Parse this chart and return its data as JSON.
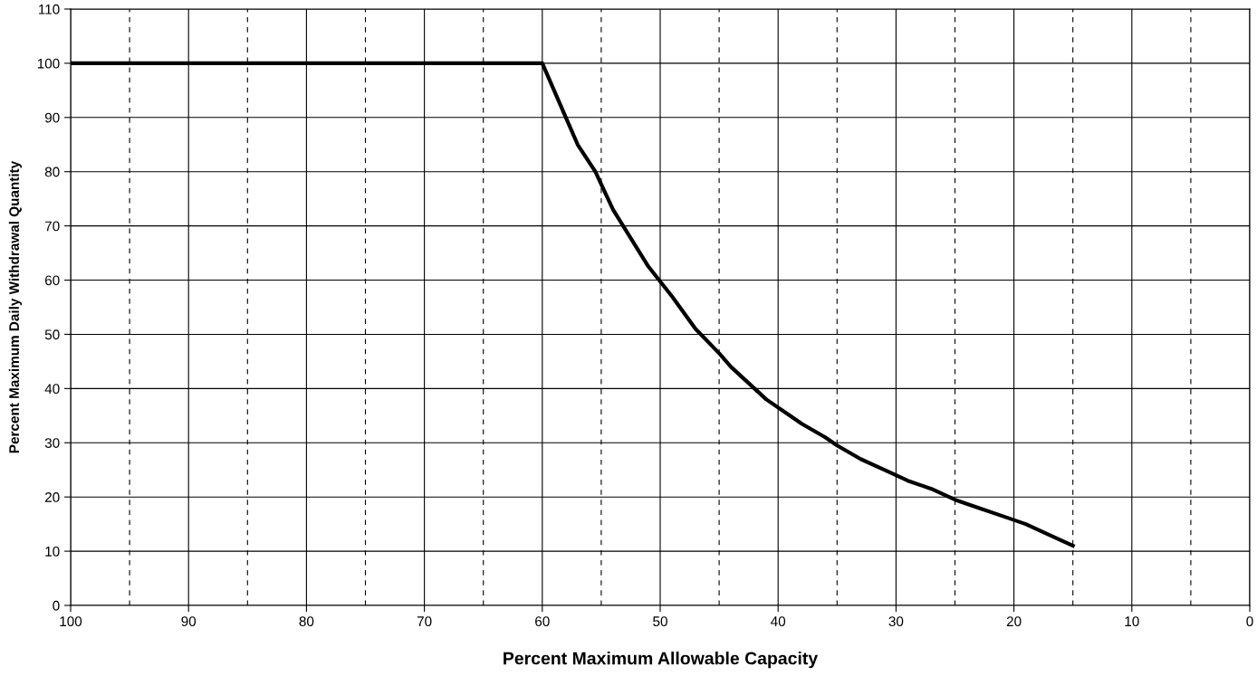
{
  "chart_data": {
    "type": "line",
    "xlabel": "Percent Maximum Allowable Capacity",
    "ylabel": "Percent Maximum Daily Withdrawal Quantity",
    "series": [
      {
        "color": "#000000",
        "x": [
          100,
          60,
          59,
          58,
          57,
          55.5,
          54,
          53,
          51,
          49,
          47,
          45,
          44,
          42,
          41,
          39,
          38,
          36,
          35,
          33,
          31,
          30,
          29,
          27,
          25,
          23,
          21,
          19,
          17,
          15
        ],
        "values": [
          100,
          100,
          95,
          90,
          85,
          80,
          73,
          69.5,
          62.5,
          57,
          51,
          46.5,
          44,
          40,
          38,
          35,
          33.5,
          31,
          29.5,
          27,
          25,
          24,
          23,
          21.5,
          19.5,
          18,
          16.5,
          15,
          13,
          11
        ]
      }
    ],
    "xlim": [
      100,
      0
    ],
    "xticks": [
      100,
      90,
      80,
      70,
      60,
      50,
      40,
      30,
      20,
      10,
      0
    ],
    "ylim": [
      0,
      110
    ],
    "yticks": [
      0,
      10,
      20,
      30,
      40,
      50,
      60,
      70,
      80,
      90,
      100,
      110
    ],
    "grid": true,
    "marker": "none",
    "line_style": "solid",
    "legend": false,
    "ref_lines": [
      {
        "axis": "x",
        "value": 95,
        "color": "#000000",
        "line_style": "dashed"
      },
      {
        "axis": "x",
        "value": 85,
        "color": "#000000",
        "line_style": "dashed"
      },
      {
        "axis": "x",
        "value": 75,
        "color": "#000000",
        "line_style": "dashed"
      },
      {
        "axis": "x",
        "value": 65,
        "color": "#000000",
        "line_style": "dashed"
      },
      {
        "axis": "x",
        "value": 55,
        "color": "#000000",
        "line_style": "dashed"
      },
      {
        "axis": "x",
        "value": 45,
        "color": "#000000",
        "line_style": "dashed"
      },
      {
        "axis": "x",
        "value": 35,
        "color": "#000000",
        "line_style": "dashed"
      },
      {
        "axis": "x",
        "value": 25,
        "color": "#000000",
        "line_style": "dashed"
      },
      {
        "axis": "x",
        "value": 15,
        "color": "#000000",
        "line_style": "dashed"
      },
      {
        "axis": "x",
        "value": 5,
        "color": "#000000",
        "line_style": "dashed"
      }
    ]
  }
}
